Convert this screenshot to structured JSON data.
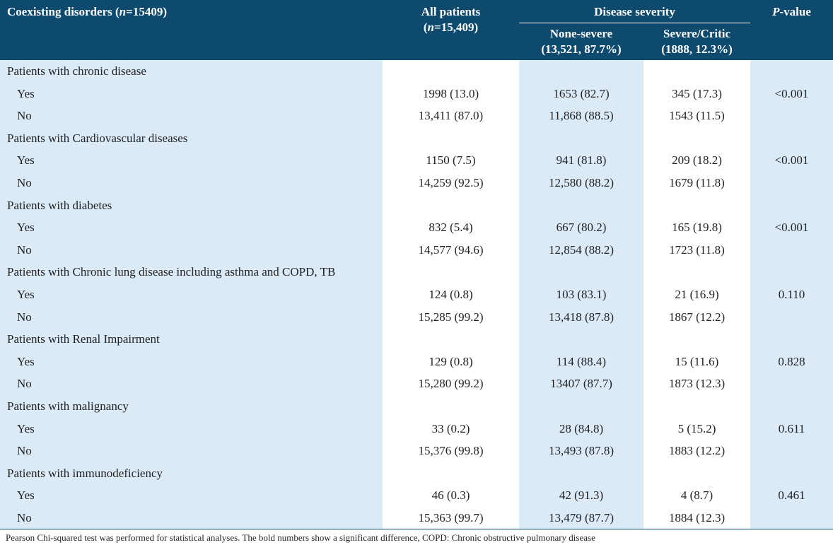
{
  "header": {
    "col_label": "Coexisting disorders (n=15409)",
    "col_all_line1": "All patients",
    "col_all_line2": "(n=15,409)",
    "col_severity_group": "Disease severity",
    "col_none_line1": "None-severe",
    "col_none_line2": "(13,521, 87.7%)",
    "col_sev_line1": "Severe/Critic",
    "col_sev_line2": "(1888, 12.3%)",
    "col_p": "P-value"
  },
  "groups": [
    {
      "title": "Patients with chronic disease",
      "rows": [
        {
          "label": "Yes",
          "all": "1998 (13.0)",
          "none": "1653 (82.7)",
          "severe": "345 (17.3)",
          "p": "<0.001"
        },
        {
          "label": "No",
          "all": "13,411 (87.0)",
          "none": "11,868 (88.5)",
          "severe": "1543 (11.5)",
          "p": ""
        }
      ]
    },
    {
      "title": "Patients with Cardiovascular diseases",
      "rows": [
        {
          "label": "Yes",
          "all": "1150 (7.5)",
          "none": "941 (81.8)",
          "severe": "209 (18.2)",
          "p": "<0.001"
        },
        {
          "label": "No",
          "all": "14,259 (92.5)",
          "none": "12,580 (88.2)",
          "severe": "1679 (11.8)",
          "p": ""
        }
      ]
    },
    {
      "title": "Patients with diabetes",
      "rows": [
        {
          "label": "Yes",
          "all": "832 (5.4)",
          "none": "667 (80.2)",
          "severe": "165 (19.8)",
          "p": "<0.001"
        },
        {
          "label": "No",
          "all": "14,577 (94.6)",
          "none": "12,854 (88.2)",
          "severe": "1723 (11.8)",
          "p": ""
        }
      ]
    },
    {
      "title": "Patients with Chronic lung disease including asthma and COPD, TB",
      "rows": [
        {
          "label": "Yes",
          "all": "124 (0.8)",
          "none": "103 (83.1)",
          "severe": "21 (16.9)",
          "p": "0.110"
        },
        {
          "label": "No",
          "all": "15,285 (99.2)",
          "none": "13,418 (87.8)",
          "severe": "1867 (12.2)",
          "p": ""
        }
      ]
    },
    {
      "title": "Patients with Renal Impairment",
      "rows": [
        {
          "label": "Yes",
          "all": "129 (0.8)",
          "none": "114 (88.4)",
          "severe": "15 (11.6)",
          "p": "0.828"
        },
        {
          "label": "No",
          "all": "15,280 (99.2)",
          "none": "13407 (87.7)",
          "severe": "1873 (12.3)",
          "p": ""
        }
      ]
    },
    {
      "title": "Patients with malignancy",
      "rows": [
        {
          "label": "Yes",
          "all": "33 (0.2)",
          "none": "28 (84.8)",
          "severe": "5 (15.2)",
          "p": "0.611"
        },
        {
          "label": "No",
          "all": "15,376 (99.8)",
          "none": "13,493 (87.8)",
          "severe": "1883 (12.2)",
          "p": ""
        }
      ]
    },
    {
      "title": "Patients with immunodeficiency",
      "rows": [
        {
          "label": "Yes",
          "all": "46 (0.3)",
          "none": "42 (91.3)",
          "severe": "4 (8.7)",
          "p": "0.461"
        },
        {
          "label": "No",
          "all": "15,363 (99.7)",
          "none": "13,479 (87.7)",
          "severe": "1884 (12.3)",
          "p": ""
        }
      ]
    }
  ],
  "footnote": "Pearson Chi-squared test was performed for statistical analyses. The bold numbers show a significant difference, COPD: Chronic obstructive pulmonary disease",
  "colors": {
    "header_bg": "#0e4a6e",
    "band_bg": "#dbeaf7"
  }
}
